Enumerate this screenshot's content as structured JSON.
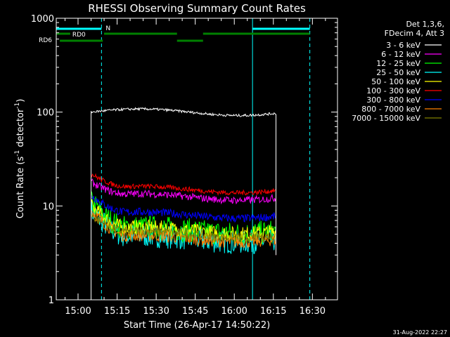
{
  "chart_data": {
    "type": "line",
    "title": "RHESSI Observing Summary Count Rates",
    "xlabel": "Start Time (26-Apr-17 14:50:22)",
    "ylabel_parts": [
      "Count Rate (s",
      "-1",
      " detector",
      "-1",
      ")"
    ],
    "yscale": "log",
    "ylim": [
      1,
      1000
    ],
    "xlim_minutes": [
      -8.37,
      99.63
    ],
    "x_ticks": [
      {
        "t": 0,
        "label": "15:00"
      },
      {
        "t": 15,
        "label": "15:15"
      },
      {
        "t": 30,
        "label": "15:30"
      },
      {
        "t": 45,
        "label": "15:45"
      },
      {
        "t": 60,
        "label": "16:00"
      },
      {
        "t": 75,
        "label": "16:15"
      },
      {
        "t": 90,
        "label": "16:30"
      }
    ],
    "y_ticks": [
      {
        "v": 1,
        "label": "1"
      },
      {
        "v": 10,
        "label": "10"
      },
      {
        "v": 100,
        "label": "100"
      },
      {
        "v": 1000,
        "label": "1000"
      }
    ],
    "legend_header": [
      "Det 1,3,6,",
      "FDecim 4, Att 3"
    ],
    "series": [
      {
        "name": "3 - 6 keV",
        "color": "#ffffff",
        "start": 100,
        "settle": 100,
        "noise": 0.03
      },
      {
        "name": "6 - 12 keV",
        "color": "#ff00ff",
        "start": 18,
        "settle": 12.5,
        "noise": 0.09
      },
      {
        "name": "12 - 25 keV",
        "color": "#00ff00",
        "start": 11,
        "settle": 5.5,
        "noise": 0.3
      },
      {
        "name": "25 - 50 keV",
        "color": "#00ffff",
        "start": 9,
        "settle": 4.5,
        "noise": 0.3
      },
      {
        "name": "50 - 100 keV",
        "color": "#ffff00",
        "start": 10,
        "settle": 5.5,
        "noise": 0.18
      },
      {
        "name": "100 - 300 keV",
        "color": "#ff0000",
        "start": 22,
        "settle": 15,
        "noise": 0.06
      },
      {
        "name": "300 - 800 keV",
        "color": "#0000ff",
        "start": 13,
        "settle": 8,
        "noise": 0.1
      },
      {
        "name": "800 - 7000 keV",
        "color": "#ff8000",
        "start": 9,
        "settle": 4.5,
        "noise": 0.15
      },
      {
        "name": "7000 - 15000 keV",
        "color": "#808000",
        "start": 8,
        "settle": 5,
        "noise": 0.12
      }
    ],
    "data_window": {
      "start": 5,
      "end": 76
    },
    "flags": [
      {
        "label": "N",
        "color": "#00ffff",
        "segments": [
          [
            -8.37,
            9
          ],
          [
            67,
            89
          ]
        ]
      },
      {
        "label": "RD0",
        "color": "#008000",
        "segments": [
          [
            -8.37,
            -3
          ],
          [
            10,
            38
          ],
          [
            48,
            89
          ]
        ]
      },
      {
        "label": "RD6",
        "color": "#008000",
        "segments": [
          [
            -7,
            9.5
          ],
          [
            38,
            48
          ]
        ]
      }
    ],
    "vlines": [
      {
        "t": -8.37,
        "color": "#00ffff",
        "style": "solid"
      },
      {
        "t": 9,
        "color": "#00ffff",
        "style": "dashed"
      },
      {
        "t": 67,
        "color": "#00ffff",
        "style": "solid"
      },
      {
        "t": 89,
        "color": "#00ffff",
        "style": "dashed"
      }
    ],
    "timestamp": "31-Aug-2022 22:27"
  }
}
